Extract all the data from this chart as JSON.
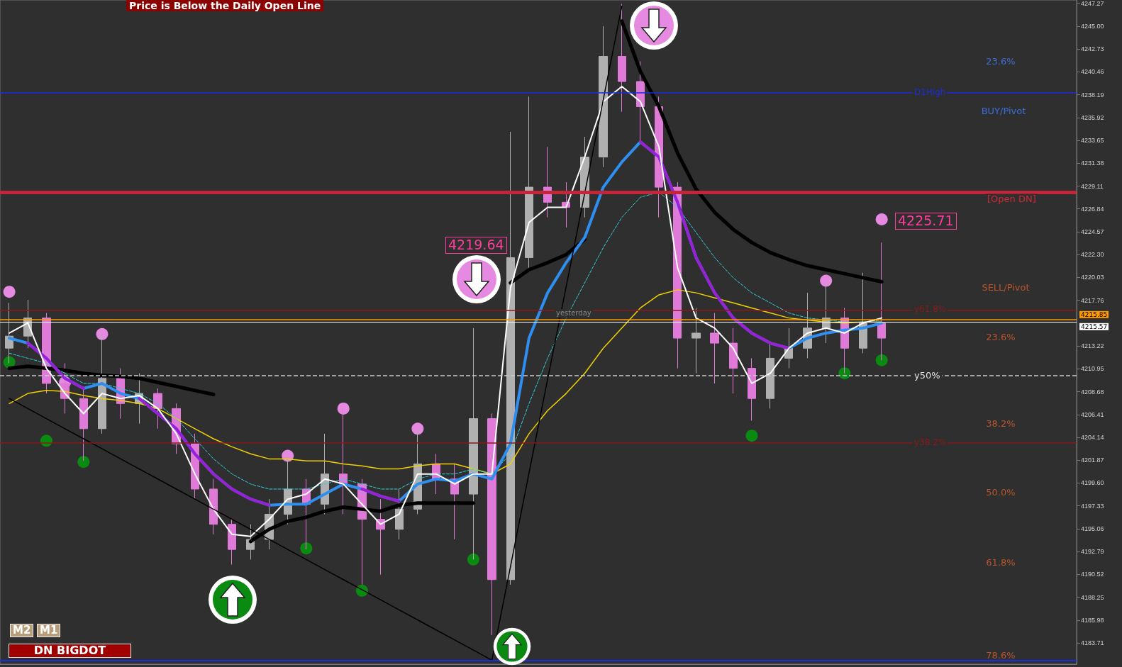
{
  "chart_data": {
    "type": "candlestick",
    "title": "Price is Below the Daily Open Line",
    "categories": [
      null,
      null,
      null,
      null,
      null,
      null,
      null,
      null,
      null,
      null,
      null,
      null,
      null,
      null,
      null,
      null,
      null,
      null,
      null,
      null,
      null,
      null,
      null,
      null,
      null,
      null,
      null,
      null,
      null,
      null,
      null,
      null,
      null,
      null,
      null,
      null,
      null,
      null,
      null,
      null,
      null,
      null,
      null,
      null,
      null,
      null,
      null,
      null,
      null,
      null,
      null,
      null,
      null,
      null,
      null,
      null,
      null,
      null
    ],
    "ylim": [
      4181.6,
      4247.6
    ],
    "yticks": [
      4183.71,
      4185.98,
      4188.25,
      4190.52,
      4192.79,
      4195.06,
      4197.33,
      {
        "value": 4199.6,
        "label": "4199.60"
      },
      4201.87,
      4204.14,
      4206.41,
      4208.68,
      4210.95,
      4213.22,
      4217.76,
      4220.03,
      {
        "value": 4222.3,
        "label": "4222.30"
      },
      4224.57,
      4226.84,
      4229.11,
      4231.38,
      4233.65,
      4235.92,
      4238.19,
      4240.46,
      4242.73,
      {
        "value": 4245,
        "label": "4245.00"
      },
      4247.27
    ],
    "tick_labels": "y",
    "grid": false,
    "series": [
      {
        "ohlc": [
          [
            4213.0,
            4217.5,
            4211.5,
            4214.2
          ],
          [
            4214.2,
            4217.8,
            4213.0,
            4216.0
          ],
          [
            4216.0,
            4216.5,
            4208.5,
            4209.5
          ],
          [
            4209.5,
            4211.5,
            4206.5,
            4208.0
          ],
          [
            4208.0,
            4209.0,
            4201.8,
            4205.0
          ],
          [
            4205.0,
            4214.5,
            4204.5,
            4210.0
          ],
          [
            4210.0,
            4211.0,
            4206.0,
            4207.5
          ],
          [
            4207.5,
            4210.5,
            4205.5,
            4208.5
          ],
          [
            4208.5,
            4209.0,
            4205.0,
            4207.0
          ],
          [
            4207.0,
            4207.5,
            4202.5,
            4203.5
          ],
          [
            4203.5,
            4204.5,
            4198.0,
            4199.0
          ],
          [
            4199.0,
            4200.0,
            4194.5,
            4195.5
          ],
          [
            4195.5,
            4196.0,
            4191.5,
            4193.0
          ],
          [
            4193.0,
            4195.5,
            4192.0,
            4194.0
          ],
          [
            4194.0,
            4198.0,
            4193.0,
            4196.5
          ],
          [
            4196.5,
            4202.3,
            4195.5,
            4199.0
          ],
          [
            4199.0,
            4200.0,
            4193.0,
            4197.5
          ],
          [
            4197.5,
            4204.5,
            4196.5,
            4200.5
          ],
          [
            4200.5,
            4207.0,
            4196.5,
            4199.5
          ],
          [
            4199.5,
            4200.0,
            4189.5,
            4196.0
          ],
          [
            4196.0,
            4198.0,
            4190.5,
            4195.0
          ],
          [
            4195.0,
            4199.0,
            4194.0,
            4197.0
          ],
          [
            4197.0,
            4205.0,
            4196.5,
            4201.5
          ],
          [
            4201.5,
            4202.5,
            4198.5,
            4200.0
          ],
          [
            4200.0,
            4201.5,
            4194.0,
            4198.5
          ],
          [
            4198.5,
            4215.0,
            4192.0,
            4206.0
          ],
          [
            4206.0,
            4206.5,
            4184.5,
            4190.0
          ],
          [
            4190.0,
            4234.5,
            4189.5,
            4222.0
          ],
          [
            4222.0,
            4238.0,
            4221.0,
            4229.0
          ],
          [
            4229.0,
            4233.0,
            4226.0,
            4227.5
          ],
          [
            4227.5,
            4229.5,
            4225.0,
            4227.0
          ],
          [
            4227.0,
            4234.0,
            4226.0,
            4232.0
          ],
          [
            4232.0,
            4245.0,
            4231.0,
            4242.0
          ],
          [
            4242.0,
            4247.2,
            4236.5,
            4239.5
          ],
          [
            4239.5,
            4241.5,
            4233.5,
            4237.0
          ],
          [
            4237.0,
            4238.0,
            4226.0,
            4229.0
          ],
          [
            4229.0,
            4229.5,
            4211.0,
            4214.0
          ],
          [
            4214.0,
            4217.0,
            4210.5,
            4214.5
          ],
          [
            4214.5,
            4216.5,
            4209.5,
            4213.5
          ],
          [
            4213.5,
            4215.0,
            4208.5,
            4211.0
          ],
          [
            4211.0,
            4212.0,
            4205.8,
            4208.0
          ],
          [
            4208.0,
            4213.5,
            4207.0,
            4212.0
          ],
          [
            4212.0,
            4215.0,
            4211.0,
            4213.0
          ],
          [
            4213.0,
            4218.5,
            4212.0,
            4215.0
          ],
          [
            4215.0,
            4219.5,
            4213.5,
            4216.0
          ],
          [
            4216.0,
            4217.0,
            4210.5,
            4213.0
          ],
          [
            4213.0,
            4220.5,
            4212.5,
            4215.5
          ],
          [
            4215.5,
            4223.5,
            4211.8,
            4214.0
          ],
          null,
          null,
          null,
          null,
          null,
          null,
          null,
          null,
          null,
          null
        ],
        "colors": [
          "#b0b0b0",
          "#b0b0b0",
          "#e07ad8",
          "#e07ad8",
          "#e07ad8",
          "#b0b0b0",
          "#e07ad8",
          "#b0b0b0",
          "#e07ad8",
          "#e07ad8",
          "#e07ad8",
          "#e07ad8",
          "#e07ad8",
          "#b0b0b0",
          "#b0b0b0",
          "#b0b0b0",
          "#e07ad8",
          "#b0b0b0",
          "#e07ad8",
          "#e07ad8",
          "#e07ad8",
          "#b0b0b0",
          "#b0b0b0",
          "#e07ad8",
          "#e07ad8",
          "#b0b0b0",
          "#e07ad8",
          "#b0b0b0",
          "#b0b0b0",
          "#e07ad8",
          "#e07ad8",
          "#b0b0b0",
          "#b0b0b0",
          "#e07ad8",
          "#e07ad8",
          "#e07ad8",
          "#e07ad8",
          "#b0b0b0",
          "#e07ad8",
          "#e07ad8",
          "#e07ad8",
          "#b0b0b0",
          "#b0b0b0",
          "#b0b0b0",
          "#b0b0b0",
          "#e07ad8",
          "#b0b0b0",
          "#e07ad8",
          null,
          null,
          null,
          null,
          null,
          null,
          null,
          null,
          null,
          null
        ]
      },
      {
        "type": "line",
        "color": "#000000",
        "values": [
          4211.0,
          4211.2,
          4211.0,
          4210.8,
          4210.5,
          4210.3,
          4210.2,
          4210.0,
          4209.6,
          4209.2,
          4208.8,
          4208.4,
          null,
          4193.8,
          4195.0,
          4195.8,
          4196.2,
          4196.8,
          4197.2,
          4197.0,
          4196.8,
          4197.4,
          4197.6,
          4197.6,
          4197.6,
          4197.6,
          null,
          4219.5,
          4220.8,
          4221.5,
          4222.3,
          4223.8,
          null,
          4245.5,
          4240.5,
          4237.0,
          4232.4,
          4228.8,
          4226.5,
          4224.8,
          4223.5,
          4222.5,
          4221.8,
          4221.2,
          4220.8,
          4220.4,
          4220.0,
          4219.6,
          null,
          null,
          null,
          null,
          null,
          null,
          null,
          null,
          null,
          null
        ]
      },
      {
        "type": "line",
        "color": "#f0d000",
        "values": [
          4207.5,
          4208.5,
          4208.8,
          4208.7,
          4208.3,
          4208.0,
          4207.8,
          4207.5,
          4207.0,
          4206.0,
          4205.0,
          4204.0,
          4203.2,
          4202.5,
          4202.0,
          4202.0,
          4201.8,
          4201.8,
          4201.5,
          4201.3,
          4201.0,
          4201.0,
          4201.3,
          4201.5,
          4201.5,
          4201.0,
          4200.5,
          4201.5,
          4204.5,
          4206.8,
          4208.5,
          4210.5,
          4213.0,
          4215.0,
          4217.0,
          4218.3,
          4218.8,
          4218.5,
          4218.0,
          4217.5,
          4217.0,
          4216.5,
          4216.0,
          4215.8,
          4215.6,
          4215.5,
          4215.6,
          4215.6,
          null,
          null,
          null,
          null,
          null,
          null,
          null,
          null,
          null,
          null
        ]
      },
      {
        "type": "line",
        "color": "#30d0d8",
        "line_style": "dashed",
        "values": [
          4212.5,
          4212.0,
          4211.5,
          4210.5,
          4209.5,
          4209.5,
          4209.0,
          4208.5,
          4207.5,
          4206.0,
          4204.0,
          4202.0,
          4200.5,
          4199.5,
          4199.0,
          4199.0,
          4199.0,
          4199.5,
          4200.0,
          4199.5,
          4199.0,
          4199.0,
          4200.0,
          4200.5,
          4200.5,
          4201.0,
          4200.5,
          4202.5,
          4207.5,
          4212.0,
          4216.0,
          4219.5,
          4223.0,
          4226.0,
          4228.0,
          4228.5,
          4227.0,
          4224.5,
          4222.0,
          4220.0,
          4218.5,
          4217.5,
          4216.5,
          4216.0,
          4215.8,
          4215.6,
          4215.6,
          4215.8,
          null,
          null,
          null,
          null,
          null,
          null,
          null,
          null,
          null,
          null
        ]
      },
      {
        "type": "line",
        "color": "#2e8ff0",
        "values": [
          4214.0,
          4213.5,
          4212.0,
          4210.0,
          4209.0,
          4209.5,
          4208.5,
          4208.0,
          4206.5,
          4205.0,
          4202.5,
          4200.5,
          4199.0,
          4198.0,
          4197.4,
          4197.5,
          4197.5,
          4198.5,
          4199.5,
          4199.0,
          4198.3,
          4197.8,
          4199.5,
          4200.0,
          4199.8,
          4200.5,
          4200.0,
          4203.5,
          4214.0,
          4218.5,
          4221.5,
          4224.0,
          4229.0,
          4231.5,
          4233.5,
          4232.0,
          4227.5,
          4222.0,
          4218.5,
          4216.0,
          4214.5,
          4213.5,
          4213.0,
          4214.0,
          4214.5,
          4214.8,
          4215.0,
          4215.5,
          null,
          null,
          null,
          null,
          null,
          null,
          null,
          null,
          null,
          null
        ]
      },
      {
        "type": "line",
        "color": "#9a20d8",
        "values": [
          null,
          4213.5,
          4212.0,
          4210.0,
          4209.0,
          null,
          null,
          4208.0,
          4206.5,
          4205.0,
          4202.5,
          4200.5,
          4199.0,
          4198.0,
          4197.4,
          null,
          null,
          null,
          null,
          4199.0,
          4198.3,
          4197.8,
          null,
          null,
          null,
          null,
          null,
          null,
          null,
          null,
          null,
          null,
          null,
          null,
          4233.5,
          4232.0,
          4227.5,
          4222.0,
          4218.5,
          4216.0,
          4214.5,
          4213.5,
          4213.0,
          null,
          null,
          null,
          null,
          null,
          null,
          null,
          null,
          null,
          null,
          null,
          null,
          null,
          null,
          null
        ]
      },
      {
        "type": "line",
        "color": "#ffffff",
        "values": [
          4214.5,
          4215.5,
          4211.0,
          4208.5,
          4206.5,
          4208.5,
          4208.0,
          4208.3,
          4207.0,
          4204.5,
          4200.5,
          4197.0,
          4194.5,
          4194.3,
          4196.0,
          4198.0,
          4198.5,
          4200.0,
          4199.5,
          4197.5,
          4195.5,
          4196.5,
          4200.5,
          4200.5,
          4199.5,
          4200.5,
          4200.5,
          4219.0,
          4225.5,
          4227.0,
          4227.0,
          4232.0,
          4237.5,
          4239.0,
          4237.5,
          4233.0,
          4221.0,
          4216.0,
          4215.0,
          4213.0,
          4209.5,
          4210.5,
          4213.0,
          4214.5,
          4215.0,
          4214.5,
          4215.5,
          4216.0,
          null,
          null,
          null,
          null,
          null,
          null,
          null,
          null,
          null,
          null
        ]
      },
      {
        "type": "line",
        "color": "#000000",
        "values": [
          4208.0,
          4207.0,
          4206.0,
          4205.0,
          4204.0,
          4203.0,
          4202.0,
          4201.0,
          4200.0,
          4199.0,
          4198.0,
          4197.0,
          4196.0,
          4195.0,
          4194.0,
          4193.0,
          4192.0,
          4191.0,
          4190.0,
          4189.0,
          4188.0,
          4187.0,
          4186.0,
          4185.0,
          4184.0,
          4183.0,
          4182.0,
          4191.3,
          4200.6,
          4209.9,
          4219.1,
          4228.4,
          4237.7,
          4247.0,
          null,
          null,
          null,
          null,
          null,
          null,
          null,
          null,
          null,
          null,
          null,
          null,
          null,
          null,
          null,
          null,
          null,
          null,
          null,
          null,
          null,
          null,
          null,
          null
        ]
      },
      {
        "type": "scatter",
        "color": "#e58ae0",
        "marker": "circle",
        "values": [
          4218.6,
          null,
          null,
          4209.6,
          null,
          4214.4,
          null,
          null,
          null,
          null,
          null,
          null,
          null,
          null,
          null,
          4202.3,
          null,
          null,
          4207.0,
          null,
          null,
          null,
          4205.0,
          null,
          null,
          null,
          null,
          null,
          null,
          null,
          null,
          null,
          null,
          null,
          null,
          null,
          null,
          null,
          null,
          null,
          null,
          null,
          null,
          null,
          4219.7,
          null,
          null,
          4225.8,
          null,
          null,
          null,
          null,
          null,
          null,
          null,
          null,
          null,
          null
        ]
      },
      {
        "type": "scatter",
        "color": "#0a8a10",
        "marker": "circle",
        "values": [
          4211.6,
          null,
          4203.8,
          null,
          4201.7,
          null,
          null,
          null,
          null,
          null,
          null,
          null,
          null,
          null,
          null,
          null,
          4193.1,
          null,
          null,
          4188.9,
          null,
          null,
          null,
          null,
          null,
          4192.0,
          null,
          null,
          null,
          null,
          null,
          null,
          null,
          null,
          null,
          null,
          null,
          null,
          null,
          null,
          4204.3,
          null,
          null,
          null,
          null,
          4210.5,
          null,
          4211.8,
          null,
          null,
          null,
          null,
          null,
          null,
          null,
          null,
          null,
          null
        ]
      }
    ],
    "ref_lines": [
      {
        "axis": "y",
        "value": 4238.4,
        "label": "D1High",
        "color": "#1a2ee0"
      },
      {
        "axis": "y",
        "value": 4228.5,
        "label": "[Open DN]",
        "color": "#c0283a"
      },
      {
        "axis": "y",
        "value": 4216.8,
        "label": "y61.8%",
        "color": "#8b1a1a"
      },
      {
        "axis": "y",
        "value": 4215.85,
        "label": "4215.85",
        "color": "#ff9900"
      },
      {
        "axis": "y",
        "value": 4215.57,
        "label": "4215.57",
        "color": "#ffffff"
      },
      {
        "axis": "y",
        "value": 4210.3,
        "label": "y50%",
        "color": "#cccccc",
        "line_style": "dashed"
      },
      {
        "axis": "y",
        "value": 4203.6,
        "label": "y38.2%",
        "color": "#8b1a1a"
      },
      {
        "axis": "y",
        "value": 4182.0,
        "color": "#1a2ee0"
      }
    ],
    "annotations": [
      "4225.71",
      "4219.64",
      "23.6%",
      "BUY/Pivot",
      "SELL/Pivot",
      "23.6%",
      "38.2%",
      "50.0%",
      "61.8%",
      "78.6%",
      "M2",
      "M1",
      "DN BIGDOT",
      "yesterday"
    ]
  }
}
